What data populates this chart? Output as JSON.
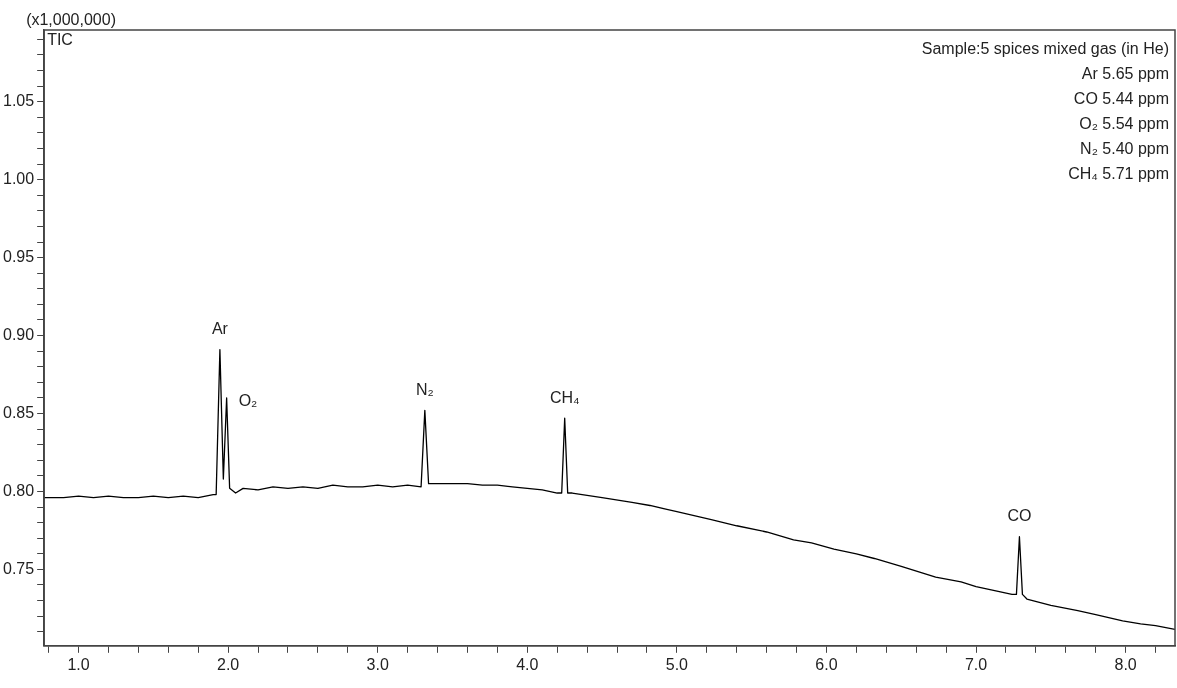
{
  "chart_data": {
    "type": "line",
    "title": "TIC",
    "ylabel": "(x1,000,000)",
    "annotations": [
      "Sample:5 spices mixed gas (in He)",
      "Ar 5.65 ppm",
      "CO 5.44 ppm",
      "O₂ 5.54 ppm",
      "N₂ 5.40 ppm",
      "CH₄ 5.71 ppm",
      {
        "text": "Ar",
        "x": 1.945,
        "y": 0.891
      },
      {
        "text": "O₂",
        "x": 1.99,
        "y": 0.86
      },
      {
        "text": "N₂",
        "x": 3.315,
        "y": 0.852
      },
      {
        "text": "CH₄",
        "x": 4.25,
        "y": 0.847
      },
      {
        "text": "CO",
        "x": 7.29,
        "y": 0.771
      }
    ],
    "series": [
      {
        "color": "#000000",
        "x": [
          0.77,
          0.9,
          1.0,
          1.1,
          1.2,
          1.3,
          1.4,
          1.5,
          1.6,
          1.7,
          1.8,
          1.9,
          1.92,
          1.945,
          1.968,
          1.99,
          2.01,
          2.05,
          2.1,
          2.2,
          2.3,
          2.4,
          2.5,
          2.6,
          2.7,
          2.8,
          2.9,
          3.0,
          3.1,
          3.2,
          3.29,
          3.315,
          3.34,
          3.4,
          3.5,
          3.6,
          3.7,
          3.8,
          3.9,
          4.0,
          4.1,
          4.2,
          4.23,
          4.25,
          4.27,
          4.3,
          4.5,
          4.7,
          4.82,
          5.0,
          5.23,
          5.4,
          5.6,
          5.78,
          5.9,
          6.05,
          6.2,
          6.32,
          6.5,
          6.73,
          6.9,
          7.0,
          7.14,
          7.24,
          7.27,
          7.29,
          7.31,
          7.34,
          7.5,
          7.68,
          7.8,
          7.98,
          8.1,
          8.2,
          8.33
        ],
        "values": [
          0.796,
          0.796,
          0.797,
          0.796,
          0.797,
          0.796,
          0.796,
          0.797,
          0.796,
          0.797,
          0.796,
          0.798,
          0.798,
          0.891,
          0.808,
          0.86,
          0.802,
          0.799,
          0.802,
          0.801,
          0.803,
          0.802,
          0.803,
          0.802,
          0.804,
          0.803,
          0.803,
          0.804,
          0.803,
          0.804,
          0.803,
          0.852,
          0.805,
          0.805,
          0.805,
          0.805,
          0.804,
          0.804,
          0.803,
          0.802,
          0.801,
          0.799,
          0.799,
          0.847,
          0.799,
          0.799,
          0.796,
          0.793,
          0.791,
          0.787,
          0.782,
          0.778,
          0.774,
          0.769,
          0.767,
          0.763,
          0.76,
          0.757,
          0.752,
          0.745,
          0.742,
          0.739,
          0.736,
          0.734,
          0.734,
          0.771,
          0.734,
          0.731,
          0.727,
          0.7235,
          0.721,
          0.717,
          0.715,
          0.714,
          0.7115
        ]
      }
    ],
    "xlim": [
      0.77,
      8.33
    ],
    "xticks": [
      {
        "value": 0.8,
        "label": null
      },
      {
        "value": 1,
        "label": "1.0"
      },
      {
        "value": 1.2,
        "label": null
      },
      {
        "value": 1.4,
        "label": null
      },
      {
        "value": 1.6,
        "label": null
      },
      {
        "value": 1.8,
        "label": null
      },
      {
        "value": 2,
        "label": "2.0"
      },
      {
        "value": 2.2,
        "label": null
      },
      {
        "value": 2.4,
        "label": null
      },
      {
        "value": 2.6,
        "label": null
      },
      {
        "value": 2.8,
        "label": null
      },
      {
        "value": 3,
        "label": "3.0"
      },
      {
        "value": 3.2,
        "label": null
      },
      {
        "value": 3.4,
        "label": null
      },
      {
        "value": 3.6,
        "label": null
      },
      {
        "value": 3.8,
        "label": null
      },
      {
        "value": 4,
        "label": "4.0"
      },
      {
        "value": 4.2,
        "label": null
      },
      {
        "value": 4.4,
        "label": null
      },
      {
        "value": 4.6,
        "label": null
      },
      {
        "value": 4.8,
        "label": null
      },
      {
        "value": 5,
        "label": "5.0"
      },
      {
        "value": 5.2,
        "label": null
      },
      {
        "value": 5.4,
        "label": null
      },
      {
        "value": 5.6,
        "label": null
      },
      {
        "value": 5.8,
        "label": null
      },
      {
        "value": 6,
        "label": "6.0"
      },
      {
        "value": 6.2,
        "label": null
      },
      {
        "value": 6.4,
        "label": null
      },
      {
        "value": 6.6,
        "label": null
      },
      {
        "value": 6.8,
        "label": null
      },
      {
        "value": 7,
        "label": "7.0"
      },
      {
        "value": 7.2,
        "label": null
      },
      {
        "value": 7.4,
        "label": null
      },
      {
        "value": 7.6,
        "label": null
      },
      {
        "value": 7.8,
        "label": null
      },
      {
        "value": 8,
        "label": "8.0"
      },
      {
        "value": 8.2,
        "label": null
      }
    ],
    "ylim": [
      0.701,
      1.096
    ],
    "yticks": [
      {
        "value": 0.71,
        "label": null
      },
      {
        "value": 0.72,
        "label": null
      },
      {
        "value": 0.73,
        "label": null
      },
      {
        "value": 0.74,
        "label": null
      },
      {
        "value": 0.75,
        "label": "0.75"
      },
      {
        "value": 0.76,
        "label": null
      },
      {
        "value": 0.77,
        "label": null
      },
      {
        "value": 0.78,
        "label": null
      },
      {
        "value": 0.79,
        "label": null
      },
      {
        "value": 0.8,
        "label": "0.80"
      },
      {
        "value": 0.81,
        "label": null
      },
      {
        "value": 0.82,
        "label": null
      },
      {
        "value": 0.83,
        "label": null
      },
      {
        "value": 0.84,
        "label": null
      },
      {
        "value": 0.85,
        "label": "0.85"
      },
      {
        "value": 0.86,
        "label": null
      },
      {
        "value": 0.87,
        "label": null
      },
      {
        "value": 0.88,
        "label": null
      },
      {
        "value": 0.89,
        "label": null
      },
      {
        "value": 0.9,
        "label": "0.90"
      },
      {
        "value": 0.91,
        "label": null
      },
      {
        "value": 0.92,
        "label": null
      },
      {
        "value": 0.93,
        "label": null
      },
      {
        "value": 0.94,
        "label": null
      },
      {
        "value": 0.95,
        "label": "0.95"
      },
      {
        "value": 0.96,
        "label": null
      },
      {
        "value": 0.97,
        "label": null
      },
      {
        "value": 0.98,
        "label": null
      },
      {
        "value": 0.99,
        "label": null
      },
      {
        "value": 1,
        "label": "1.00"
      },
      {
        "value": 1.01,
        "label": null
      },
      {
        "value": 1.02,
        "label": null
      },
      {
        "value": 1.03,
        "label": null
      },
      {
        "value": 1.04,
        "label": null
      },
      {
        "value": 1.05,
        "label": "1.05"
      },
      {
        "value": 1.06,
        "label": null
      },
      {
        "value": 1.07,
        "label": null
      },
      {
        "value": 1.08,
        "label": null
      },
      {
        "value": 1.09,
        "label": null
      }
    ],
    "marker": "none",
    "line_style": "solid"
  }
}
